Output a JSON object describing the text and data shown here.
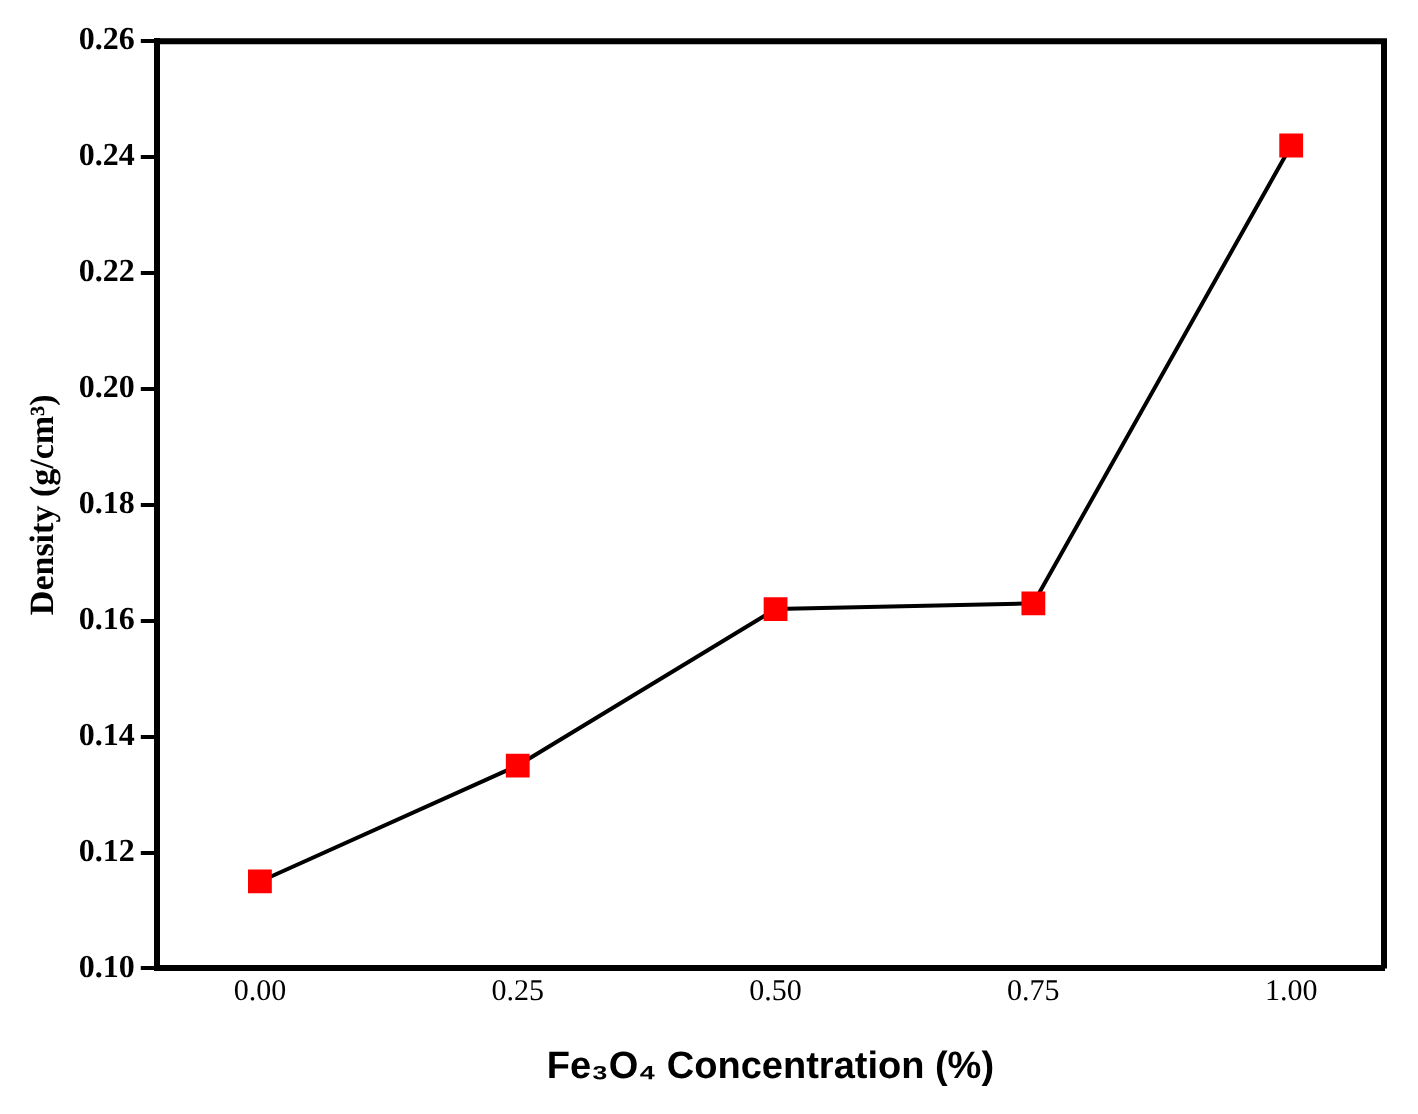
{
  "chart_data": {
    "type": "line",
    "xlabel": "Fe₃O₄ Concentration (%)",
    "ylabel": "Density (g/cm³)",
    "x": [
      0,
      0.25,
      0.5,
      0.75,
      1.0
    ],
    "series": [
      {
        "color": "#ff0000",
        "values": [
          0.115,
          0.135,
          0.162,
          0.163,
          0.242
        ]
      }
    ],
    "xlim": [
      -0.1,
      1.09
    ],
    "xticks": [
      {
        "value": 0,
        "label": "0.00"
      },
      {
        "value": 0.25,
        "label": "0.25"
      },
      {
        "value": 0.5,
        "label": "0.50"
      },
      {
        "value": 0.75,
        "label": "0.75"
      },
      {
        "value": 1,
        "label": "1.00"
      }
    ],
    "ylim": [
      0.1,
      0.26
    ],
    "yticks": [
      {
        "value": 0.1,
        "label": "0.10"
      },
      {
        "value": 0.12,
        "label": "0.12"
      },
      {
        "value": 0.14,
        "label": "0.14"
      },
      {
        "value": 0.16,
        "label": "0.16"
      },
      {
        "value": 0.18,
        "label": "0.18"
      },
      {
        "value": 0.2,
        "label": "0.20"
      },
      {
        "value": 0.22,
        "label": "0.22"
      },
      {
        "value": 0.24,
        "label": "0.24"
      },
      {
        "value": 0.26,
        "label": "0.26"
      }
    ],
    "grid": false,
    "legend": false,
    "marker": "square",
    "line_style": "solid"
  }
}
